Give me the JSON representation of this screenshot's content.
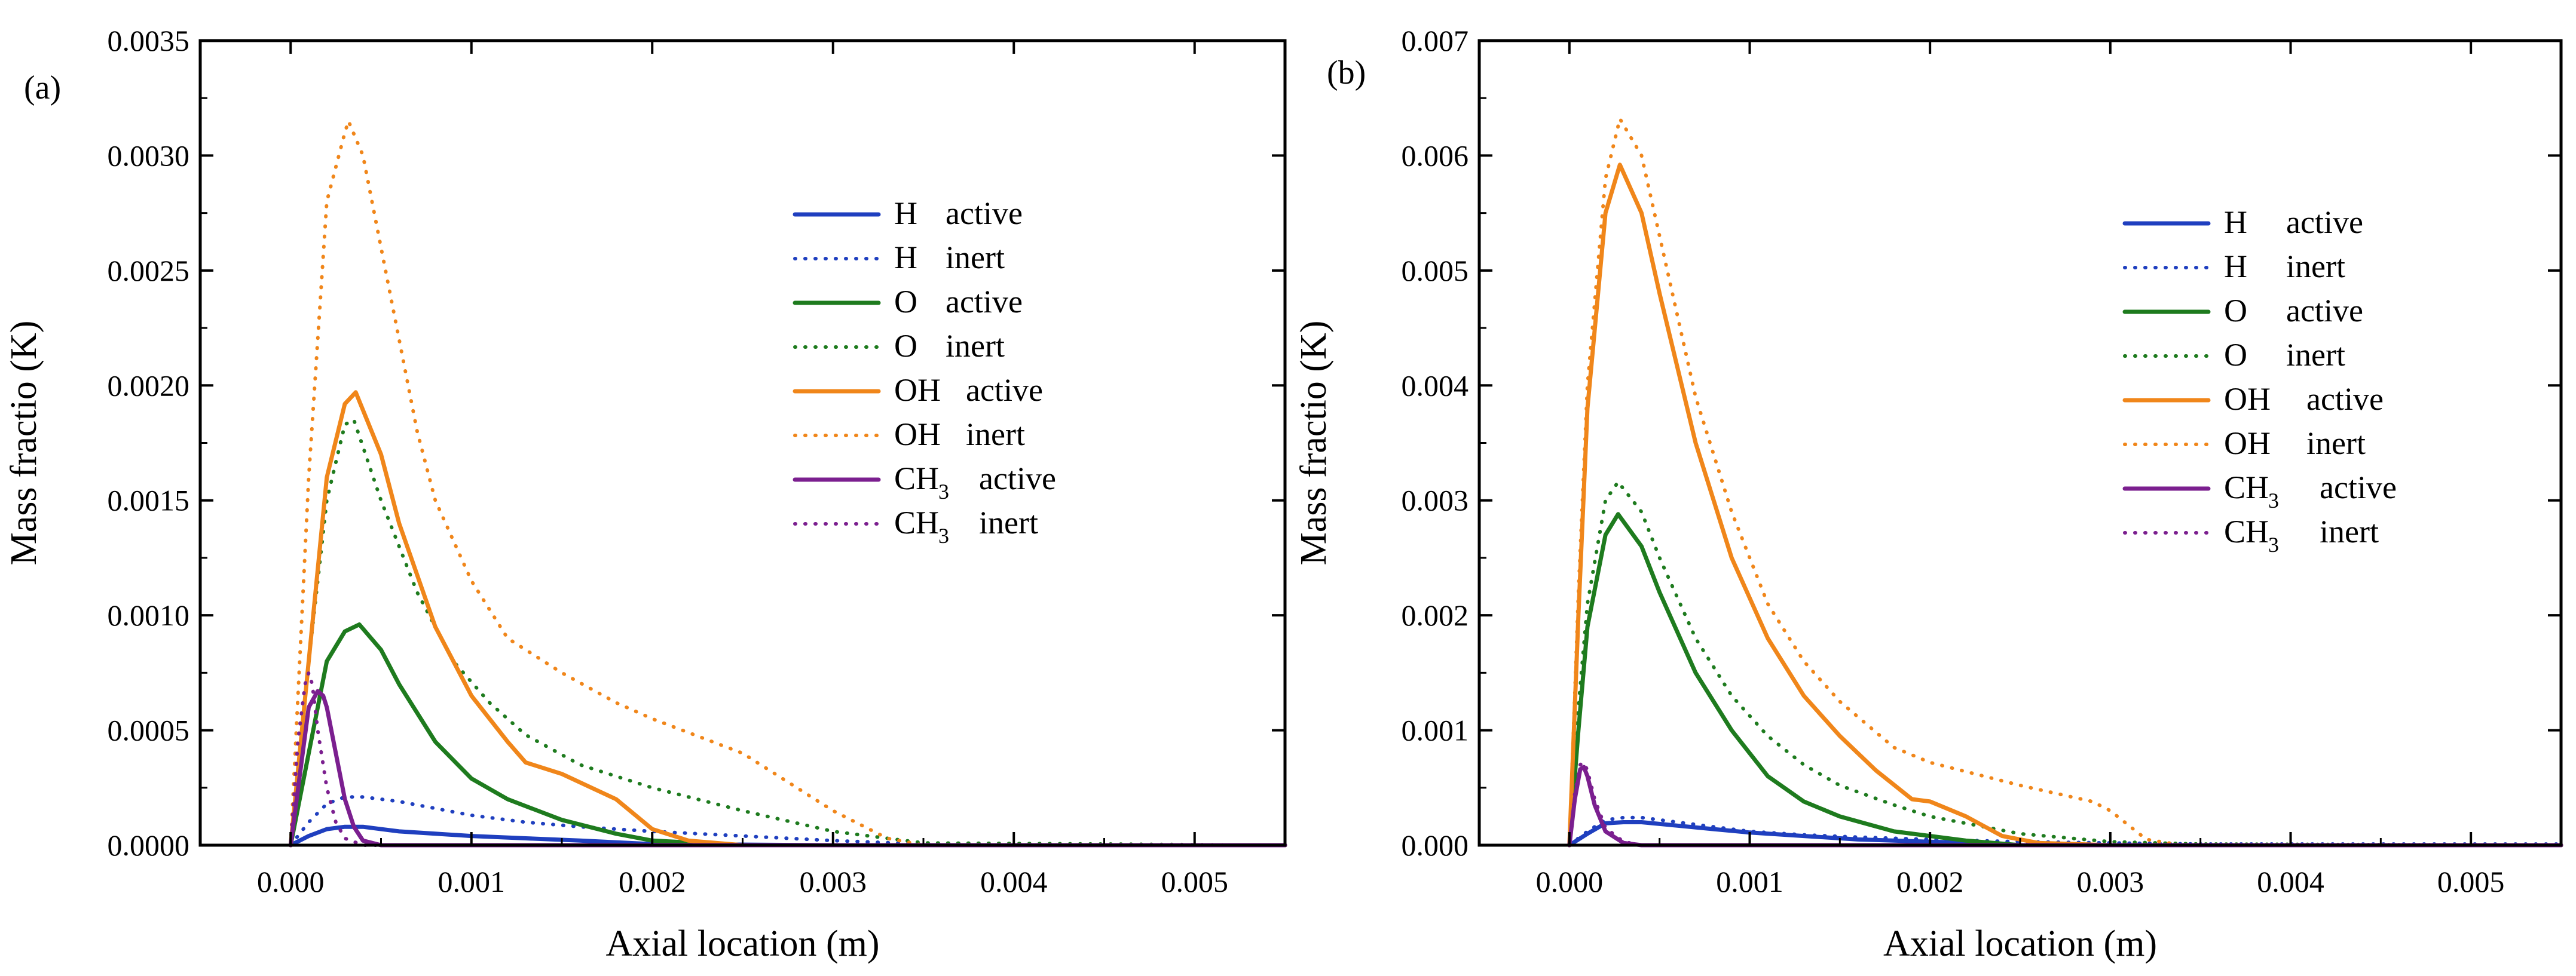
{
  "chart_data": [
    {
      "type": "line",
      "panel_label": "(a)",
      "xlabel": "Axial location (m)",
      "ylabel": "Mass fractio (K)",
      "xlim": [
        -0.0005,
        0.0055
      ],
      "ylim": [
        0,
        0.0035
      ],
      "x_ticks": [
        0,
        0.001,
        0.002,
        0.003,
        0.004,
        0.005
      ],
      "x_tick_labels": [
        "0.000",
        "0.001",
        "0.002",
        "0.003",
        "0.004",
        "0.005"
      ],
      "y_ticks": [
        0,
        0.0005,
        0.001,
        0.0015,
        0.002,
        0.0025,
        0.003,
        0.0035
      ],
      "y_tick_labels": [
        "0.0000",
        "0.0005",
        "0.0010",
        "0.0015",
        "0.0020",
        "0.0025",
        "0.0030",
        "0.0035"
      ],
      "legend_position": "upper-center-right",
      "series": [
        {
          "species": "H",
          "subscript": "",
          "mode": "active",
          "color": "#1f3fbf",
          "style": "solid",
          "x": [
            0,
            0.0001,
            0.0002,
            0.0003,
            0.0004,
            0.0006,
            0.0008,
            0.001,
            0.0013,
            0.0016,
            0.002,
            0.003,
            0.0055
          ],
          "y": [
            0,
            4e-05,
            7e-05,
            8e-05,
            8e-05,
            6e-05,
            5e-05,
            4e-05,
            3e-05,
            2e-05,
            5e-06,
            0,
            0
          ]
        },
        {
          "species": "H",
          "subscript": "",
          "mode": "inert",
          "color": "#1f3fbf",
          "style": "dotted",
          "x": [
            0,
            0.0001,
            0.0002,
            0.0003,
            0.0004,
            0.0006,
            0.0008,
            0.001,
            0.0013,
            0.0016,
            0.002,
            0.0025,
            0.003,
            0.0035,
            0.0055
          ],
          "y": [
            0,
            0.0001,
            0.00018,
            0.00021,
            0.00021,
            0.00019,
            0.00016,
            0.00013,
            0.0001,
            8e-05,
            6e-05,
            4e-05,
            2e-05,
            5e-06,
            0
          ]
        },
        {
          "species": "O",
          "subscript": "",
          "mode": "active",
          "color": "#1e7b1e",
          "style": "solid",
          "x": [
            0,
            0.0001,
            0.0002,
            0.0003,
            0.00038,
            0.0005,
            0.0006,
            0.0008,
            0.001,
            0.0012,
            0.0015,
            0.0018,
            0.002,
            0.0025,
            0.0055
          ],
          "y": [
            0,
            0.0004,
            0.0008,
            0.00093,
            0.00096,
            0.00085,
            0.0007,
            0.00045,
            0.00029,
            0.0002,
            0.00011,
            5e-05,
            2e-05,
            0,
            0
          ]
        },
        {
          "species": "O",
          "subscript": "",
          "mode": "inert",
          "color": "#1e7b1e",
          "style": "dotted",
          "x": [
            0,
            0.0001,
            0.0002,
            0.0003,
            0.00035,
            0.0005,
            0.0007,
            0.0009,
            0.0011,
            0.0013,
            0.0016,
            0.002,
            0.0025,
            0.003,
            0.0035,
            0.0055
          ],
          "y": [
            0,
            0.0008,
            0.0015,
            0.00183,
            0.00185,
            0.0015,
            0.0011,
            0.0008,
            0.00062,
            0.00048,
            0.00035,
            0.00025,
            0.00015,
            6e-05,
            1e-05,
            0
          ]
        },
        {
          "species": "OH",
          "subscript": "",
          "mode": "active",
          "color": "#f0861a",
          "style": "solid",
          "x": [
            0,
            0.0001,
            0.0002,
            0.0003,
            0.00036,
            0.0005,
            0.0006,
            0.0008,
            0.001,
            0.0012,
            0.0013,
            0.0015,
            0.0018,
            0.002,
            0.0022,
            0.0025,
            0.003,
            0.0055
          ],
          "y": [
            0,
            0.0008,
            0.0016,
            0.00192,
            0.00197,
            0.0017,
            0.0014,
            0.00095,
            0.00065,
            0.00045,
            0.00036,
            0.00031,
            0.0002,
            7e-05,
            2e-05,
            0,
            0,
            0
          ]
        },
        {
          "species": "OH",
          "subscript": "",
          "mode": "inert",
          "color": "#f0861a",
          "style": "dotted",
          "x": [
            0,
            0.0001,
            0.0002,
            0.0003,
            0.00032,
            0.0004,
            0.0005,
            0.0006,
            0.0007,
            0.0008,
            0.001,
            0.0012,
            0.0015,
            0.0018,
            0.002,
            0.0025,
            0.003,
            0.0033,
            0.0035,
            0.0055
          ],
          "y": [
            0,
            0.0016,
            0.0028,
            0.0031,
            0.00315,
            0.003,
            0.0026,
            0.0022,
            0.0018,
            0.0015,
            0.00115,
            0.0009,
            0.00075,
            0.00062,
            0.00055,
            0.0004,
            0.00015,
            3e-05,
            0,
            0
          ]
        },
        {
          "species": "CH",
          "subscript": "3",
          "mode": "active",
          "color": "#7b1f8f",
          "style": "solid",
          "x": [
            0,
            5e-05,
            0.0001,
            0.00015,
            0.00018,
            0.0002,
            0.00025,
            0.0003,
            0.00035,
            0.0004,
            0.0005,
            0.0055
          ],
          "y": [
            0,
            0.0003,
            0.0006,
            0.00067,
            0.00065,
            0.0006,
            0.0004,
            0.0002,
            8e-05,
            2e-05,
            0,
            0
          ]
        },
        {
          "species": "CH",
          "subscript": "3",
          "mode": "inert",
          "color": "#7b1f8f",
          "style": "dotted",
          "x": [
            0,
            4e-05,
            8e-05,
            0.0001,
            0.00012,
            0.00015,
            0.0002,
            0.00025,
            0.0003,
            0.0004,
            0.0055
          ],
          "y": [
            0,
            0.00045,
            0.0007,
            0.00075,
            0.0007,
            0.0005,
            0.00025,
            0.0001,
            3e-05,
            0,
            0
          ]
        }
      ]
    },
    {
      "type": "line",
      "panel_label": "(b)",
      "xlabel": "Axial location (m)",
      "ylabel": "Mass fractio (K)",
      "xlim": [
        -0.0005,
        0.0055
      ],
      "ylim": [
        0,
        0.007
      ],
      "x_ticks": [
        0,
        0.001,
        0.002,
        0.003,
        0.004,
        0.005
      ],
      "x_tick_labels": [
        "0.000",
        "0.001",
        "0.002",
        "0.003",
        "0.004",
        "0.005"
      ],
      "y_ticks": [
        0,
        0.001,
        0.002,
        0.003,
        0.004,
        0.005,
        0.006,
        0.007
      ],
      "y_tick_labels": [
        "0.000",
        "0.001",
        "0.002",
        "0.003",
        "0.004",
        "0.005",
        "0.006",
        "0.007"
      ],
      "legend_position": "upper-right",
      "series": [
        {
          "species": "H",
          "subscript": "",
          "mode": "active",
          "color": "#1f3fbf",
          "style": "solid",
          "x": [
            0,
            0.0001,
            0.0002,
            0.0003,
            0.0004,
            0.0006,
            0.0008,
            0.001,
            0.0013,
            0.0016,
            0.002,
            0.0023,
            0.0025,
            0.003,
            0.0055
          ],
          "y": [
            0,
            0.0001,
            0.00019,
            0.0002,
            0.0002,
            0.00017,
            0.00014,
            0.00011,
            8e-05,
            5e-05,
            3e-05,
            2e-05,
            0,
            0,
            0
          ]
        },
        {
          "species": "H",
          "subscript": "",
          "mode": "inert",
          "color": "#1f3fbf",
          "style": "dotted",
          "x": [
            0,
            0.0001,
            0.0002,
            0.0003,
            0.0004,
            0.0006,
            0.0008,
            0.001,
            0.0013,
            0.0016,
            0.002,
            0.0025,
            0.003,
            0.0035,
            0.0055
          ],
          "y": [
            0,
            0.00012,
            0.00022,
            0.00024,
            0.00024,
            0.0002,
            0.00016,
            0.00012,
            9e-05,
            7e-05,
            5e-05,
            3e-05,
            2e-05,
            1e-05,
            1e-05
          ]
        },
        {
          "species": "O",
          "subscript": "",
          "mode": "active",
          "color": "#1e7b1e",
          "style": "solid",
          "x": [
            0,
            5e-05,
            0.0001,
            0.0002,
            0.00027,
            0.0004,
            0.0005,
            0.0007,
            0.0009,
            0.0011,
            0.0013,
            0.0015,
            0.0018,
            0.002,
            0.0022,
            0.0025,
            0.0055
          ],
          "y": [
            0,
            0.001,
            0.0019,
            0.0027,
            0.00288,
            0.0026,
            0.0022,
            0.0015,
            0.001,
            0.0006,
            0.00038,
            0.00025,
            0.00012,
            8e-05,
            4e-05,
            0,
            0
          ]
        },
        {
          "species": "O",
          "subscript": "",
          "mode": "inert",
          "color": "#1e7b1e",
          "style": "dotted",
          "x": [
            0,
            5e-05,
            0.0001,
            0.0002,
            0.00027,
            0.0004,
            0.0005,
            0.0007,
            0.0009,
            0.0011,
            0.0013,
            0.0015,
            0.0018,
            0.002,
            0.0025,
            0.003,
            0.0035,
            0.0055
          ],
          "y": [
            0,
            0.0012,
            0.0021,
            0.003,
            0.00316,
            0.0029,
            0.0025,
            0.0018,
            0.0013,
            0.00095,
            0.0007,
            0.00052,
            0.00035,
            0.00025,
            0.0001,
            3e-05,
            1e-05,
            0
          ]
        },
        {
          "species": "OH",
          "subscript": "",
          "mode": "active",
          "color": "#f0861a",
          "style": "solid",
          "x": [
            0,
            5e-05,
            0.0001,
            0.0002,
            0.00028,
            0.0004,
            0.0005,
            0.0007,
            0.0009,
            0.0011,
            0.0013,
            0.0015,
            0.0017,
            0.0019,
            0.002,
            0.0022,
            0.0024,
            0.0026,
            0.003,
            0.0055
          ],
          "y": [
            0,
            0.002,
            0.0038,
            0.0055,
            0.00592,
            0.0055,
            0.0048,
            0.0035,
            0.0025,
            0.0018,
            0.0013,
            0.00095,
            0.00065,
            0.0004,
            0.00038,
            0.00025,
            8e-05,
            2e-05,
            0,
            0
          ]
        },
        {
          "species": "OH",
          "subscript": "",
          "mode": "inert",
          "color": "#f0861a",
          "style": "dotted",
          "x": [
            0,
            5e-05,
            0.0001,
            0.0002,
            0.00028,
            0.0004,
            0.0005,
            0.0007,
            0.0009,
            0.0011,
            0.0013,
            0.0015,
            0.0018,
            0.002,
            0.0025,
            0.0029,
            0.003,
            0.0032,
            0.0034,
            0.0055
          ],
          "y": [
            0,
            0.0022,
            0.004,
            0.0058,
            0.00632,
            0.006,
            0.0053,
            0.0039,
            0.0029,
            0.0021,
            0.0016,
            0.00125,
            0.00085,
            0.00072,
            0.00052,
            0.00038,
            0.0003,
            5e-05,
            0,
            0
          ]
        },
        {
          "species": "CH",
          "subscript": "3",
          "mode": "active",
          "color": "#7b1f8f",
          "style": "solid",
          "x": [
            0,
            3e-05,
            6e-05,
            8e-05,
            0.0001,
            0.00014,
            0.0002,
            0.0003,
            0.0004,
            0.0055
          ],
          "y": [
            0,
            0.0004,
            0.00066,
            0.00068,
            0.0006,
            0.00035,
            0.00012,
            2e-05,
            0,
            0
          ]
        },
        {
          "species": "CH",
          "subscript": "3",
          "mode": "inert",
          "color": "#7b1f8f",
          "style": "dotted",
          "x": [
            0,
            3e-05,
            6e-05,
            8e-05,
            0.0001,
            0.00014,
            0.0002,
            0.0003,
            0.0004,
            0.0055
          ],
          "y": [
            0,
            0.00045,
            0.0007,
            0.00072,
            0.00065,
            0.0004,
            0.00015,
            3e-05,
            0,
            0
          ]
        }
      ]
    }
  ]
}
